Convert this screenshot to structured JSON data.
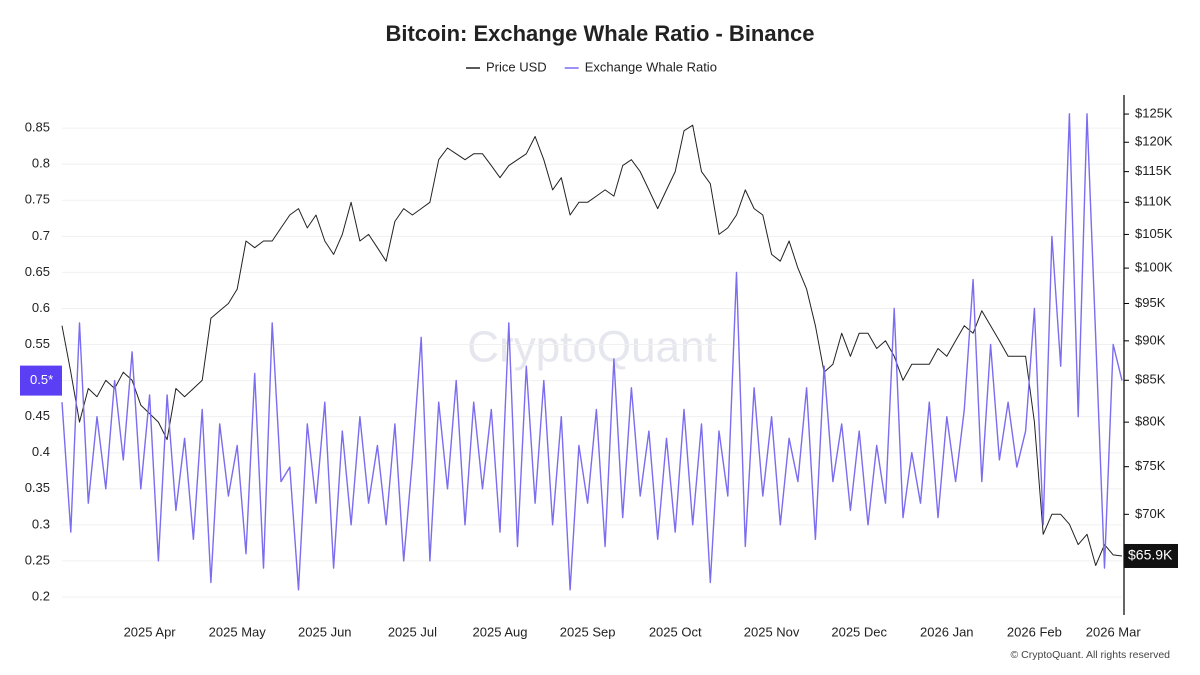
{
  "chart_data": {
    "type": "line",
    "title": "Bitcoin: Exchange Whale Ratio - Binance",
    "watermark": "CryptoQuant",
    "footer": "© CryptoQuant. All rights reserved",
    "categories": [
      null,
      null,
      null,
      null,
      null,
      null,
      null,
      null,
      null,
      null,
      "2025 Apr",
      null,
      null,
      null,
      null,
      null,
      null,
      null,
      null,
      null,
      "2025 May",
      null,
      null,
      null,
      null,
      null,
      null,
      null,
      null,
      null,
      "2025 Jun",
      null,
      null,
      null,
      null,
      null,
      null,
      null,
      null,
      null,
      "2025 Jul",
      null,
      null,
      null,
      null,
      null,
      null,
      null,
      null,
      null,
      "2025 Aug",
      null,
      null,
      null,
      null,
      null,
      null,
      null,
      null,
      null,
      "2025 Sep",
      null,
      null,
      null,
      null,
      null,
      null,
      null,
      null,
      null,
      "2025 Oct",
      null,
      null,
      null,
      null,
      null,
      null,
      null,
      null,
      null,
      null,
      "2025 Nov",
      null,
      null,
      null,
      null,
      null,
      null,
      null,
      null,
      null,
      "2025 Dec",
      null,
      null,
      null,
      null,
      null,
      null,
      null,
      null,
      null,
      "2026 Jan",
      null,
      null,
      null,
      null,
      null,
      null,
      null,
      null,
      null,
      "2026 Feb",
      null,
      null,
      null,
      null,
      null,
      null,
      null,
      null,
      "2026 Mar",
      null
    ],
    "series": [
      {
        "name": "Price USD",
        "color": "#222222",
        "axis": "y2",
        "last_value_label": "$65.9K",
        "values": [
          92000,
          86000,
          80000,
          84000,
          83000,
          85000,
          84000,
          86000,
          85000,
          82000,
          81000,
          80000,
          78000,
          84000,
          83000,
          84000,
          85000,
          93000,
          94000,
          95000,
          97000,
          104000,
          103000,
          104000,
          104000,
          106000,
          108000,
          109000,
          106000,
          108000,
          104000,
          102000,
          105000,
          110000,
          104000,
          105000,
          103000,
          101000,
          107000,
          109000,
          108000,
          109000,
          110000,
          117000,
          119000,
          118000,
          117000,
          118000,
          118000,
          116000,
          114000,
          116000,
          117000,
          118000,
          121000,
          117000,
          112000,
          114000,
          108000,
          110000,
          110000,
          111000,
          112000,
          111000,
          116000,
          117000,
          115000,
          112000,
          109000,
          112000,
          115000,
          122000,
          123000,
          115000,
          113000,
          105000,
          106000,
          108000,
          112000,
          109000,
          108000,
          102000,
          101000,
          104000,
          100000,
          97000,
          92000,
          86000,
          87000,
          91000,
          88000,
          91000,
          91000,
          89000,
          90000,
          88000,
          85000,
          87000,
          87000,
          87000,
          89000,
          88000,
          90000,
          92000,
          91000,
          94000,
          92000,
          90000,
          88000,
          88000,
          88000,
          80000,
          68000,
          70000,
          70000,
          69000,
          67000,
          68000,
          65000,
          67000,
          66000,
          65900
        ]
      },
      {
        "name": "Exchange Whale Ratio",
        "color": "#7b6cf0",
        "axis": "y",
        "last_value_label": "0.5*",
        "values": [
          0.47,
          0.29,
          0.58,
          0.33,
          0.45,
          0.35,
          0.5,
          0.39,
          0.54,
          0.35,
          0.48,
          0.25,
          0.48,
          0.32,
          0.42,
          0.28,
          0.46,
          0.22,
          0.44,
          0.34,
          0.41,
          0.26,
          0.51,
          0.24,
          0.58,
          0.36,
          0.38,
          0.21,
          0.44,
          0.33,
          0.47,
          0.24,
          0.43,
          0.3,
          0.45,
          0.33,
          0.41,
          0.3,
          0.44,
          0.25,
          0.39,
          0.56,
          0.25,
          0.47,
          0.35,
          0.5,
          0.3,
          0.47,
          0.35,
          0.46,
          0.29,
          0.58,
          0.27,
          0.52,
          0.33,
          0.5,
          0.3,
          0.45,
          0.21,
          0.41,
          0.33,
          0.46,
          0.27,
          0.53,
          0.31,
          0.49,
          0.34,
          0.43,
          0.28,
          0.42,
          0.29,
          0.46,
          0.3,
          0.44,
          0.22,
          0.43,
          0.34,
          0.65,
          0.27,
          0.49,
          0.34,
          0.45,
          0.3,
          0.42,
          0.36,
          0.49,
          0.28,
          0.52,
          0.36,
          0.44,
          0.32,
          0.43,
          0.3,
          0.41,
          0.33,
          0.6,
          0.31,
          0.4,
          0.33,
          0.47,
          0.31,
          0.45,
          0.36,
          0.46,
          0.64,
          0.36,
          0.55,
          0.39,
          0.47,
          0.38,
          0.43,
          0.6,
          0.3,
          0.7,
          0.52,
          0.87,
          0.45,
          0.87,
          0.56,
          0.24,
          0.55,
          0.5
        ]
      }
    ],
    "ylim": [
      0.175,
      0.896
    ],
    "yticks": [
      0.2,
      0.25,
      0.3,
      0.35,
      0.4,
      0.45,
      0.5,
      0.55,
      0.6,
      0.65,
      0.7,
      0.75,
      0.8,
      0.85
    ],
    "y2lim": [
      60500,
      128500
    ],
    "y2scale": "log",
    "y2ticks": [
      {
        "value": 70000,
        "label": "$70K"
      },
      {
        "value": 75000,
        "label": "$75K"
      },
      {
        "value": 80000,
        "label": "$80K"
      },
      {
        "value": 85000,
        "label": "$85K"
      },
      {
        "value": 90000,
        "label": "$90K"
      },
      {
        "value": 95000,
        "label": "$95K"
      },
      {
        "value": 100000,
        "label": "$100K"
      },
      {
        "value": 105000,
        "label": "$105K"
      },
      {
        "value": 110000,
        "label": "$110K"
      },
      {
        "value": 115000,
        "label": "$115K"
      },
      {
        "value": 120000,
        "label": "$120K"
      },
      {
        "value": 125000,
        "label": "$125K"
      }
    ],
    "grid": true,
    "legend": "top"
  }
}
